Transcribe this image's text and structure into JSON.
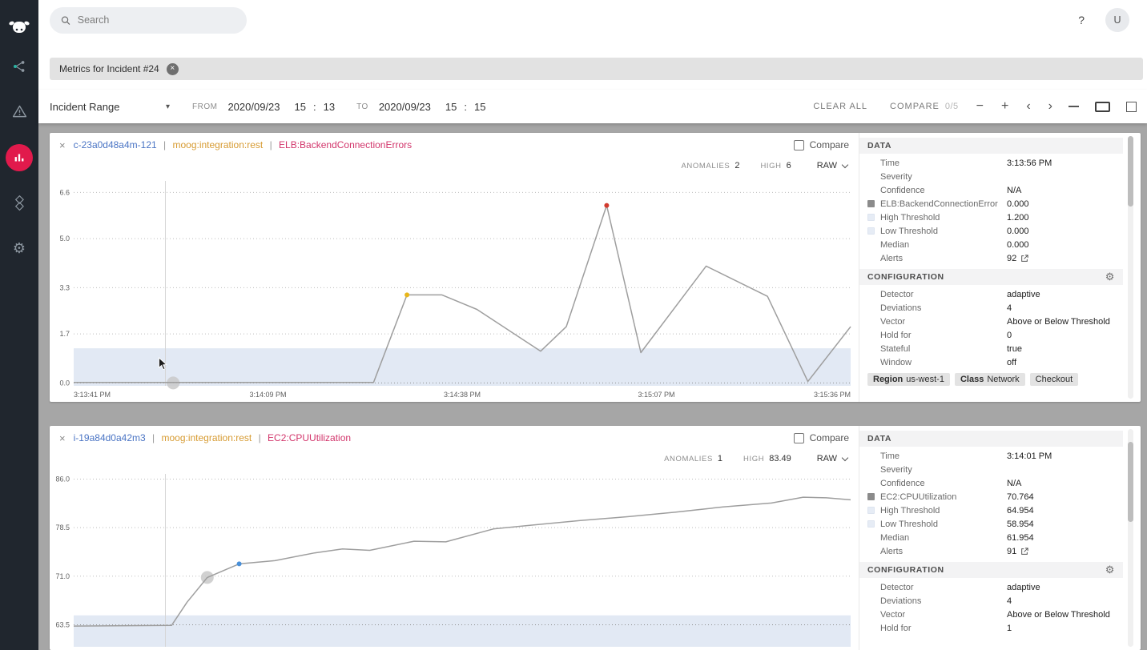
{
  "icons": {
    "close_x": "×",
    "caret_down": "▾",
    "minus": "−",
    "plus": "+",
    "chevron_left": "‹",
    "chevron_right": "›",
    "gear": "⚙",
    "help": "?"
  },
  "ui": {
    "title_separator": "|",
    "time_separator": ":"
  },
  "topbar": {
    "search_placeholder": "Search",
    "avatar_initial": "U"
  },
  "filter_chip": {
    "label": "Metrics for Incident #24"
  },
  "toolbar": {
    "range_label": "Incident Range",
    "from_label": "FROM",
    "from_date": "2020/09/23",
    "from_hour": "15",
    "from_minute": "13",
    "to_label": "TO",
    "to_date": "2020/09/23",
    "to_hour": "15",
    "to_minute": "15",
    "clear_all_label": "CLEAR ALL",
    "compare_label": "COMPARE",
    "compare_count": "0/5"
  },
  "colors": {
    "sidebar_bg": "#20262e",
    "accent_red": "#e11a4c",
    "main_bg": "#a6a6a6",
    "source_blue": "#4a74c4",
    "integration_orange": "#d79b32",
    "metric_pink": "#d2356b",
    "line_gray": "#9e9e9e",
    "band_blue": "#e2e9f4",
    "anomaly_yellow": "#e8b61a",
    "anomaly_red": "#d23a2e",
    "anomaly_blue": "#4a90d9"
  },
  "cards": [
    {
      "source": "c-23a0d48a4m-121",
      "integration": "moog:integration:rest",
      "metric": "ELB:BackendConnectionErrors",
      "compare_label": "Compare",
      "anomalies_label": "ANOMALIES",
      "anomalies_value": "2",
      "high_label": "HIGH",
      "high_value": "6",
      "raw_label": "RAW",
      "data_section_label": "DATA",
      "config_section_label": "CONFIGURATION",
      "data_rows": [
        {
          "label": "Time",
          "value": "3:13:56 PM"
        },
        {
          "label": "Severity",
          "value": ""
        },
        {
          "label": "Confidence",
          "value": "N/A"
        },
        {
          "label": "ELB:BackendConnectionError",
          "value": "0.000",
          "swatch": "dark"
        },
        {
          "label": "High Threshold",
          "value": "1.200",
          "swatch": "light"
        },
        {
          "label": "Low Threshold",
          "value": "0.000",
          "swatch": "light"
        },
        {
          "label": "Median",
          "value": "0.000"
        },
        {
          "label": "Alerts",
          "value": "92",
          "link": true
        }
      ],
      "config_rows": [
        {
          "label": "Detector",
          "value": "adaptive"
        },
        {
          "label": "Deviations",
          "value": "4"
        },
        {
          "label": "Vector",
          "value": "Above or Below Threshold"
        },
        {
          "label": "Hold for",
          "value": "0"
        },
        {
          "label": "Stateful",
          "value": "true"
        },
        {
          "label": "Window",
          "value": "off"
        }
      ],
      "tags": [
        {
          "bold": "Region",
          "text": "us-west-1"
        },
        {
          "bold": "Class",
          "text": "Network"
        },
        {
          "bold": "",
          "text": "Checkout"
        }
      ]
    },
    {
      "source": "i-19a84d0a42m3",
      "integration": "moog:integration:rest",
      "metric": "EC2:CPUUtilization",
      "compare_label": "Compare",
      "anomalies_label": "ANOMALIES",
      "anomalies_value": "1",
      "high_label": "HIGH",
      "high_value": "83.49",
      "raw_label": "RAW",
      "data_section_label": "DATA",
      "config_section_label": "CONFIGURATION",
      "data_rows": [
        {
          "label": "Time",
          "value": "3:14:01 PM"
        },
        {
          "label": "Severity",
          "value": ""
        },
        {
          "label": "Confidence",
          "value": "N/A"
        },
        {
          "label": "EC2:CPUUtilization",
          "value": "70.764",
          "swatch": "dark"
        },
        {
          "label": "High Threshold",
          "value": "64.954",
          "swatch": "light"
        },
        {
          "label": "Low Threshold",
          "value": "58.954",
          "swatch": "light"
        },
        {
          "label": "Median",
          "value": "61.954"
        },
        {
          "label": "Alerts",
          "value": "91",
          "link": true
        }
      ],
      "config_rows": [
        {
          "label": "Detector",
          "value": "adaptive"
        },
        {
          "label": "Deviations",
          "value": "4"
        },
        {
          "label": "Vector",
          "value": "Above or Below Threshold"
        },
        {
          "label": "Hold for",
          "value": "1"
        }
      ],
      "tags": []
    }
  ],
  "chart_data": [
    {
      "type": "line",
      "title": "ELB:BackendConnectionErrors",
      "xlabel": "",
      "ylabel": "",
      "ylim": [
        -0.1,
        7.0
      ],
      "y_ticks": [
        "6.6",
        "5.0",
        "3.3",
        "1.7",
        "0.0"
      ],
      "x_ticks": [
        "3:13:41 PM",
        "3:14:09 PM",
        "3:14:38 PM",
        "3:15:07 PM",
        "3:15:36 PM"
      ],
      "band": {
        "low": -0.1,
        "high": 1.2,
        "color": "#e2e9f4"
      },
      "cursor_x": 0.118,
      "marker": {
        "x": 0.128,
        "y": 0.0
      },
      "series": [
        {
          "name": "ELB:BackendConnectionErrors",
          "color": "#9e9e9e",
          "points": [
            [
              0,
              0.02
            ],
            [
              0.386,
              0.02
            ],
            [
              0.429,
              3.05
            ],
            [
              0.474,
              3.05
            ],
            [
              0.519,
              2.55
            ],
            [
              0.601,
              1.1
            ],
            [
              0.634,
              1.95
            ],
            [
              0.686,
              6.15
            ],
            [
              0.73,
              1.05
            ],
            [
              0.814,
              4.05
            ],
            [
              0.893,
              3.0
            ],
            [
              0.945,
              0.05
            ],
            [
              1,
              1.95
            ]
          ]
        }
      ],
      "anomalies": [
        {
          "x": 0.429,
          "y": 3.05,
          "color": "#e8b61a"
        },
        {
          "x": 0.686,
          "y": 6.15,
          "color": "#d23a2e"
        }
      ]
    },
    {
      "type": "line",
      "title": "EC2:CPUUtilization",
      "xlabel": "",
      "ylabel": "",
      "ylim": [
        60.1,
        86.8
      ],
      "y_ticks": [
        "86.0",
        "78.5",
        "71.0",
        "63.5"
      ],
      "x_ticks": [],
      "band": {
        "low": 60.1,
        "high": 64.954,
        "color": "#e2e9f4"
      },
      "cursor_x": 0.118,
      "marker": {
        "x": 0.172,
        "y": 70.8
      },
      "series": [
        {
          "name": "EC2:CPUUtilization",
          "color": "#9e9e9e",
          "points": [
            [
              0,
              63.3
            ],
            [
              0.126,
              63.4
            ],
            [
              0.146,
              67.0
            ],
            [
              0.172,
              70.8
            ],
            [
              0.213,
              72.9
            ],
            [
              0.259,
              73.4
            ],
            [
              0.31,
              74.6
            ],
            [
              0.346,
              75.2
            ],
            [
              0.381,
              75.0
            ],
            [
              0.438,
              76.4
            ],
            [
              0.479,
              76.3
            ],
            [
              0.54,
              78.3
            ],
            [
              0.591,
              78.9
            ],
            [
              0.652,
              79.6
            ],
            [
              0.714,
              80.2
            ],
            [
              0.775,
              80.9
            ],
            [
              0.836,
              81.7
            ],
            [
              0.898,
              82.3
            ],
            [
              0.939,
              83.2
            ],
            [
              0.969,
              83.1
            ],
            [
              1,
              82.8
            ]
          ]
        }
      ],
      "anomalies": [
        {
          "x": 0.213,
          "y": 72.9,
          "color": "#4a90d9"
        }
      ]
    }
  ]
}
